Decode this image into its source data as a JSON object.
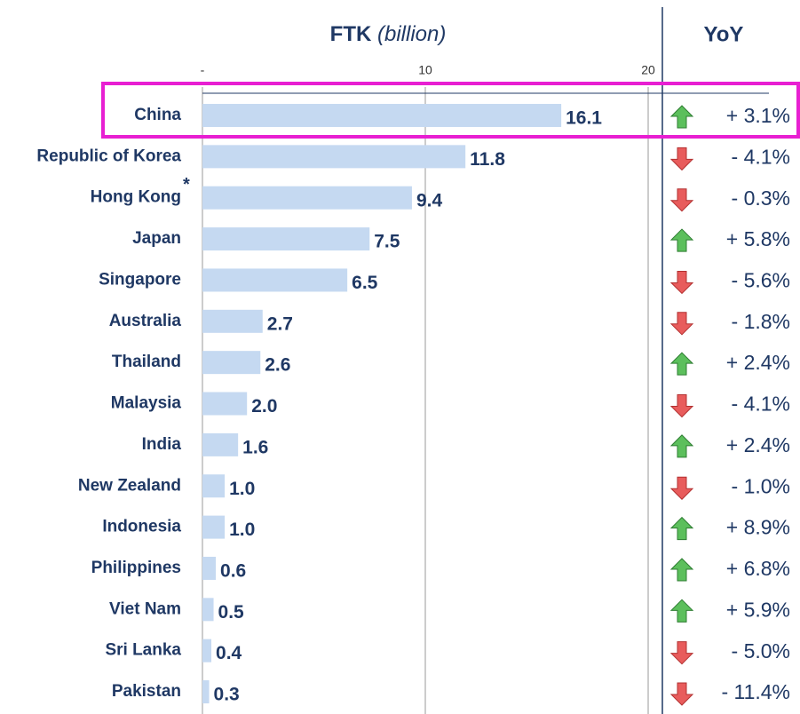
{
  "chart_data": {
    "type": "bar",
    "orientation": "horizontal",
    "title": "FTK",
    "subtitle": "(billion)",
    "categories": [
      "China",
      "Republic of Korea",
      "Hong Kong",
      "Japan",
      "Singapore",
      "Australia",
      "Thailand",
      "Malaysia",
      "India",
      "New Zealand",
      "Indonesia",
      "Philippines",
      "Viet Nam",
      "Sri Lanka",
      "Pakistan"
    ],
    "values": [
      16.1,
      11.8,
      9.4,
      7.5,
      6.5,
      2.7,
      2.6,
      2.0,
      1.6,
      1.0,
      1.0,
      0.6,
      0.5,
      0.4,
      0.3
    ],
    "value_labels": [
      "16.1",
      "11.8",
      "9.4",
      "7.5",
      "6.5",
      "2.7",
      "2.6",
      "2.0",
      "1.6",
      "1.0",
      "1.0",
      "0.6",
      "0.5",
      "0.4",
      "0.3"
    ],
    "color": "#c5d9f1",
    "xlim": [
      0,
      20
    ],
    "xticks": [
      {
        "value": 0,
        "label": "-"
      },
      10,
      20
    ],
    "grid": true,
    "annotations": [
      {
        "text": "*",
        "category": "Hong Kong"
      }
    ],
    "highlight": {
      "category": "China",
      "color": "#e81fd2"
    },
    "yoy": {
      "title": "YoY",
      "values": [
        3.1,
        -4.1,
        -0.3,
        5.8,
        -5.6,
        -1.8,
        2.4,
        -4.1,
        2.4,
        -1.0,
        8.9,
        6.8,
        5.9,
        -5.0,
        -11.4
      ],
      "value_labels": [
        "+ 3.1%",
        "- 4.1%",
        "- 0.3%",
        "+ 5.8%",
        "- 5.6%",
        "- 1.8%",
        "+ 2.4%",
        "- 4.1%",
        "+ 2.4%",
        "- 1.0%",
        "+ 8.9%",
        "+ 6.8%",
        "+ 5.9%",
        "- 5.0%",
        "- 11.4%"
      ],
      "up_color": "#5cbf5c",
      "down_color": "#e85c5c"
    }
  }
}
